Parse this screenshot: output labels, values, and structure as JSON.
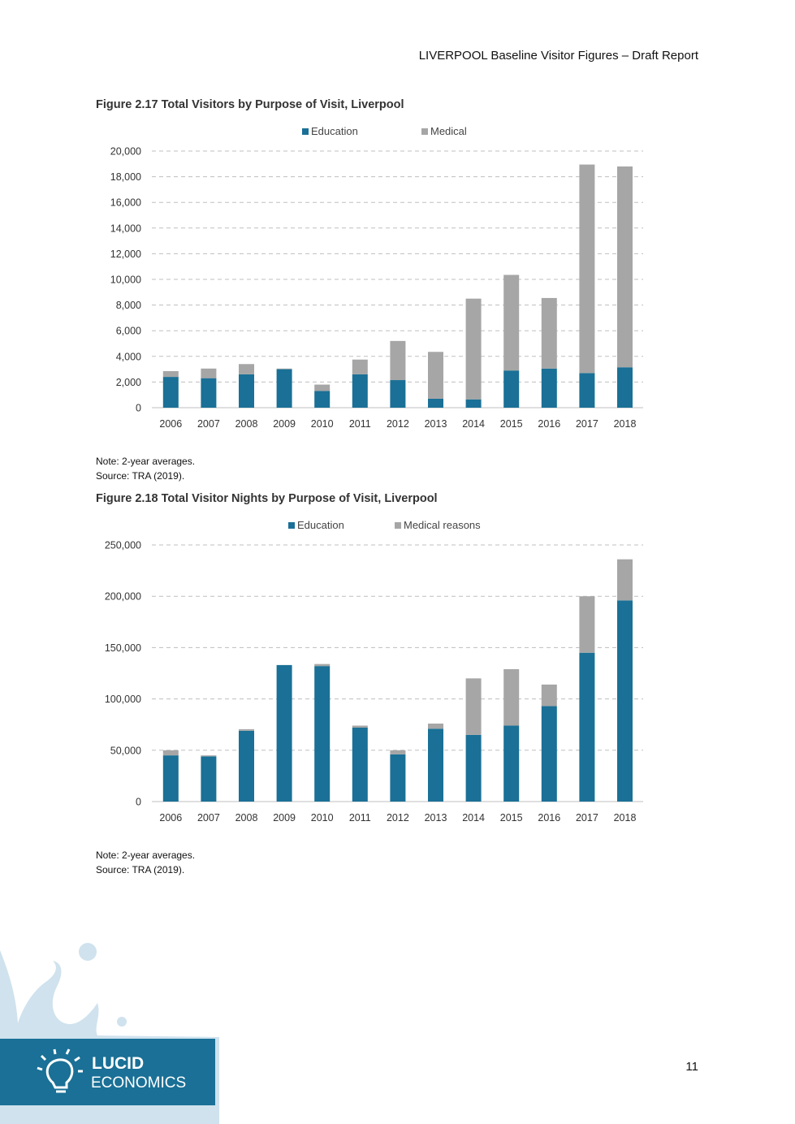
{
  "header": {
    "title": "LIVERPOOL Baseline Visitor Figures – Draft Report"
  },
  "colors": {
    "education": "#1a7096",
    "medical": "#a6a6a6",
    "grid": "#bfbfbf",
    "axis": "#bfbfbf",
    "text": "#444444"
  },
  "chart_data": [
    {
      "type": "bar",
      "stacked": true,
      "title": "Figure 2.17 Total Visitors by Purpose of Visit, Liverpool",
      "categories": [
        "2006",
        "2007",
        "2008",
        "2009",
        "2010",
        "2011",
        "2012",
        "2013",
        "2014",
        "2015",
        "2016",
        "2017",
        "2018"
      ],
      "series": [
        {
          "name": "Education",
          "color": "#1a7096",
          "values": [
            2400,
            2300,
            2600,
            3000,
            1300,
            2600,
            2150,
            700,
            650,
            2900,
            3050,
            2700,
            3150
          ]
        },
        {
          "name": "Medical",
          "color": "#a6a6a6",
          "values": [
            450,
            750,
            800,
            50,
            500,
            1150,
            3050,
            3650,
            7850,
            7450,
            5500,
            16250,
            15650
          ]
        }
      ],
      "ylim": [
        0,
        20000
      ],
      "yticks": [
        "0",
        "2,000",
        "4,000",
        "6,000",
        "8,000",
        "10,000",
        "12,000",
        "14,000",
        "16,000",
        "18,000",
        "20,000"
      ],
      "ytick_values": [
        0,
        2000,
        4000,
        6000,
        8000,
        10000,
        12000,
        14000,
        16000,
        18000,
        20000
      ],
      "legend_position": "top-center",
      "grid": true,
      "note": "Note: 2-year averages.",
      "source": "Source: TRA (2019)."
    },
    {
      "type": "bar",
      "stacked": true,
      "title": "Figure 2.18 Total Visitor Nights by Purpose of Visit, Liverpool",
      "categories": [
        "2006",
        "2007",
        "2008",
        "2009",
        "2010",
        "2011",
        "2012",
        "2013",
        "2014",
        "2015",
        "2016",
        "2017",
        "2018"
      ],
      "series": [
        {
          "name": "Education",
          "color": "#1a7096",
          "values": [
            45000,
            44000,
            69000,
            133000,
            132000,
            72000,
            46000,
            71000,
            65000,
            74000,
            93000,
            145000,
            196000
          ]
        },
        {
          "name": "Medical reasons",
          "color": "#a6a6a6",
          "values": [
            5000,
            1000,
            1500,
            0,
            2000,
            2000,
            4000,
            5000,
            55000,
            55000,
            21000,
            55000,
            40000
          ]
        }
      ],
      "ylim": [
        0,
        250000
      ],
      "yticks": [
        "0",
        "50,000",
        "100,000",
        "150,000",
        "200,000",
        "250,000"
      ],
      "ytick_values": [
        0,
        50000,
        100000,
        150000,
        200000,
        250000
      ],
      "legend_position": "top-center",
      "grid": true,
      "note": "Note: 2-year averages.",
      "source": "Source: TRA (2019)."
    }
  ],
  "footer": {
    "page_number": "11",
    "logo_line1": "LUCID",
    "logo_line2": "ECONOMICS",
    "logo_icon": "lightbulb-icon"
  }
}
